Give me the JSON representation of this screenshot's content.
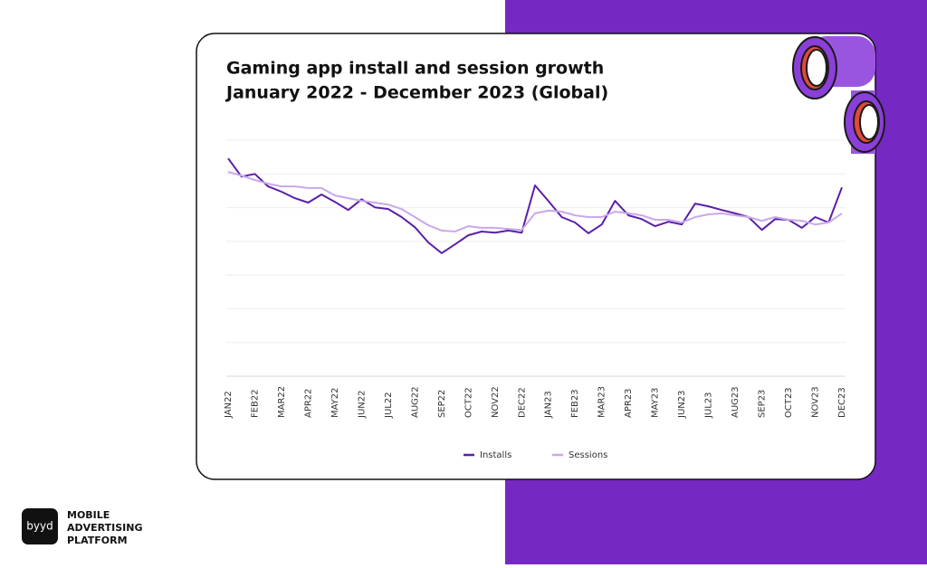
{
  "chart_data": {
    "type": "line",
    "title": "Gaming app install and session growth",
    "subtitle": "January 2022 - December 2023 (Global)",
    "categories": [
      "JAN22",
      null,
      "FEB22",
      null,
      "MAR22",
      null,
      "APR22",
      null,
      "MAY22",
      null,
      "JUN22",
      null,
      "JUL22",
      null,
      "AUG22",
      null,
      "SEP22",
      null,
      "OCT22",
      null,
      "NOV22",
      null,
      "DEC22",
      null,
      "JAN23",
      null,
      "FEB23",
      null,
      "MAR23",
      null,
      "APR23",
      null,
      "MAY23",
      null,
      "JUN23",
      null,
      "JUL23",
      null,
      "AUG23",
      null,
      "SEP23",
      null,
      "OCT23",
      null,
      "NOV23",
      null,
      "DEC23"
    ],
    "series": [
      {
        "name": "Installs",
        "color": "#5b1fa8",
        "values": [
          6.46,
          5.92,
          6.0,
          5.63,
          5.47,
          5.28,
          5.15,
          5.39,
          5.17,
          4.93,
          5.25,
          5.01,
          4.96,
          4.72,
          4.42,
          3.97,
          3.65,
          3.91,
          4.18,
          4.29,
          4.26,
          4.32,
          4.26,
          5.66,
          5.2,
          4.72,
          4.56,
          4.24,
          4.5,
          5.2,
          4.77,
          4.66,
          4.45,
          4.58,
          4.5,
          5.12,
          5.04,
          4.93,
          4.83,
          4.72,
          4.34,
          4.66,
          4.64,
          4.4,
          4.72,
          4.56,
          5.6
        ]
      },
      {
        "name": "Sessions",
        "color": "#c9a8ec",
        "values": [
          6.06,
          5.95,
          5.82,
          5.71,
          5.63,
          5.63,
          5.58,
          5.58,
          5.36,
          5.28,
          5.2,
          5.15,
          5.09,
          4.96,
          4.72,
          4.48,
          4.32,
          4.29,
          4.45,
          4.4,
          4.4,
          4.37,
          4.34,
          4.83,
          4.91,
          4.88,
          4.77,
          4.72,
          4.72,
          4.88,
          4.83,
          4.77,
          4.64,
          4.64,
          4.56,
          4.72,
          4.8,
          4.83,
          4.77,
          4.72,
          4.61,
          4.72,
          4.64,
          4.61,
          4.5,
          4.56,
          4.83
        ]
      }
    ],
    "ylim": [
      0,
      7
    ],
    "yticks": [
      0,
      1,
      2,
      3,
      4,
      5,
      6,
      7
    ],
    "grid": true,
    "legend": "bottom"
  },
  "branding": {
    "logo": "byyd",
    "tagline": [
      "MOBILE",
      "ADVERTISING",
      "PLATFORM"
    ]
  }
}
